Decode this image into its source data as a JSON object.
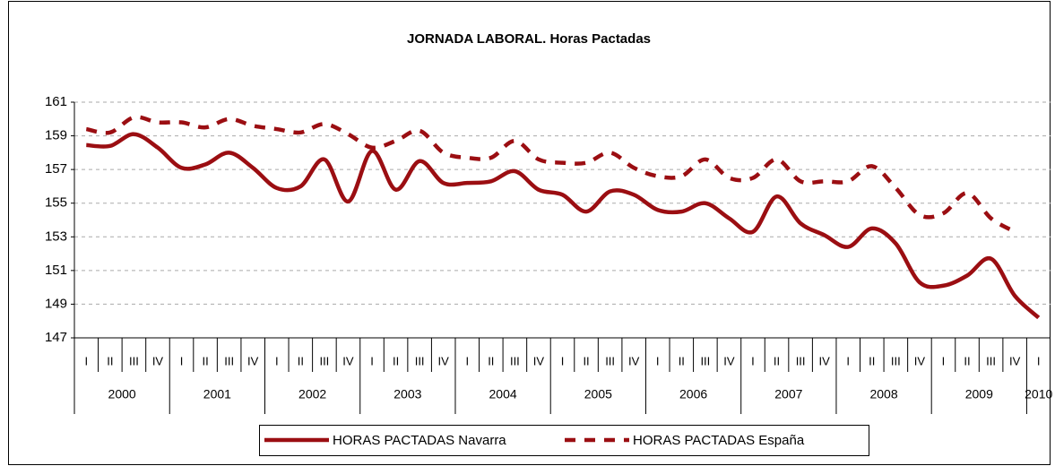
{
  "chart_data": {
    "type": "line",
    "title": "JORNADA LABORAL. Horas Pactadas",
    "categories": [
      "I",
      "II",
      "III",
      "IV",
      "I",
      "II",
      "III",
      "IV",
      "I",
      "II",
      "III",
      "IV",
      "I",
      "II",
      "III",
      "IV",
      "I",
      "II",
      "III",
      "IV",
      "I",
      "II",
      "III",
      "IV",
      "I",
      "II",
      "III",
      "IV",
      "I",
      "II",
      "III",
      "IV",
      "I",
      "II",
      "III",
      "IV",
      "I",
      "II",
      "III",
      "IV",
      "I"
    ],
    "years": [
      "2000",
      "2001",
      "2002",
      "2003",
      "2004",
      "2005",
      "2006",
      "2007",
      "2008",
      "2009",
      "2010"
    ],
    "series": [
      {
        "name": "HORAS PACTADAS Navarra",
        "color": "#9b0e12",
        "dashed": false,
        "values": [
          158.45,
          158.4,
          159.1,
          158.3,
          157.1,
          157.3,
          158.0,
          157.1,
          155.9,
          156.0,
          157.6,
          155.1,
          158.1,
          155.8,
          157.5,
          156.2,
          156.2,
          156.3,
          156.9,
          155.8,
          155.5,
          154.5,
          155.7,
          155.5,
          154.6,
          154.5,
          155.0,
          154.1,
          153.3,
          155.4,
          153.8,
          153.1,
          152.4,
          153.5,
          152.6,
          150.3,
          150.1,
          150.7,
          151.7,
          149.5,
          148.2
        ]
      },
      {
        "name": "HORAS PACTADAS España",
        "color": "#9b0e12",
        "dashed": true,
        "values": [
          159.4,
          159.2,
          160.1,
          159.8,
          159.8,
          159.5,
          160.0,
          159.6,
          159.4,
          159.2,
          159.7,
          159.1,
          158.3,
          158.7,
          159.3,
          158.0,
          157.7,
          157.7,
          158.7,
          157.6,
          157.4,
          157.4,
          158.0,
          157.1,
          156.6,
          156.6,
          157.6,
          156.5,
          156.5,
          157.6,
          156.3,
          156.3,
          156.3,
          157.2,
          155.9,
          154.3,
          154.4,
          155.6,
          154.1,
          153.3,
          null
        ]
      }
    ],
    "ylim": [
      147,
      161
    ],
    "yticks": [
      147,
      149,
      151,
      153,
      155,
      157,
      159,
      161
    ],
    "grid": true
  }
}
